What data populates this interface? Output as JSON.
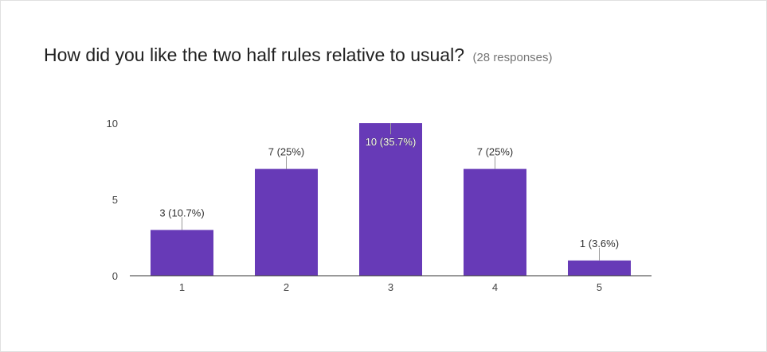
{
  "question": {
    "title": "How did you like the two half rules relative to usual?",
    "responses": "(28 responses)"
  },
  "colors": {
    "bar": "#673ab7",
    "axis": "#333333",
    "leader": "#999999"
  },
  "chart_data": {
    "type": "bar",
    "title": "How did you like the two half rules relative to usual?",
    "xlabel": "",
    "ylabel": "",
    "categories": [
      "1",
      "2",
      "3",
      "4",
      "5"
    ],
    "values": [
      3,
      7,
      10,
      7,
      1
    ],
    "data_labels": [
      "3 (10.7%)",
      "7 (25%)",
      "10 (35.7%)",
      "7 (25%)",
      "1 (3.6%)"
    ],
    "yticks": [
      "0",
      "5",
      "10"
    ],
    "ytick_values": [
      0,
      5,
      10
    ],
    "ylim": [
      0,
      10
    ],
    "grid": false,
    "legend": "none"
  }
}
